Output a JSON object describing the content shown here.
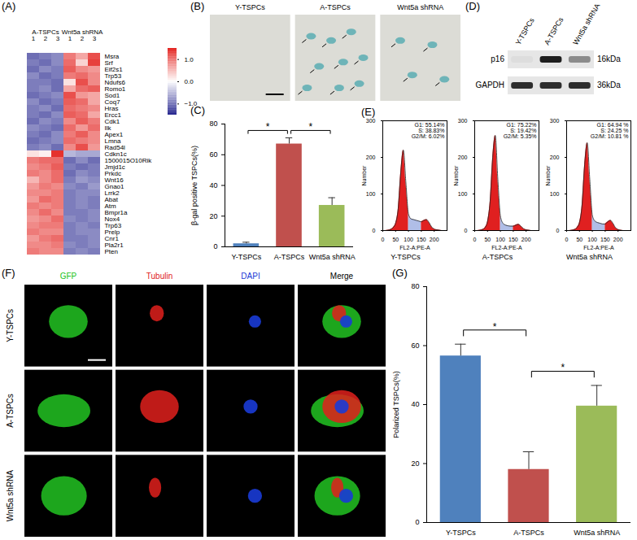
{
  "chart_data": [
    {
      "type": "heatmap",
      "panel": "(A)",
      "groups": [
        "A-TSPCs",
        "Wnt5a shRNA"
      ],
      "columns": [
        "1",
        "2",
        "3",
        "1",
        "2",
        "3"
      ],
      "rows": [
        "Msra",
        "Srf",
        "Eif2s1",
        "Trp53",
        "Ndufs6",
        "Romo1",
        "Sod1",
        "Coq7",
        "Hras",
        "Ercc1",
        "Cdk1",
        "Ilk",
        "Apex1",
        "Lmna",
        "Rad54l",
        "Cdkn1c",
        "1500015O10Rik",
        "Jmjd1c",
        "Prkdc",
        "Wnt16",
        "Gnao1",
        "Lrrk2",
        "Abat",
        "Atm",
        "Bmpr1a",
        "Nox4",
        "Trp63",
        "Prelp",
        "Cnr1",
        "Pla2r1",
        "Pten"
      ],
      "values": [
        [
          -1.0,
          -0.9,
          -0.8,
          0.9,
          0.6,
          1.2
        ],
        [
          -0.9,
          -1.0,
          -0.8,
          1.0,
          0.3,
          1.3
        ],
        [
          -1.0,
          -0.8,
          -0.9,
          1.1,
          0.8,
          0.7
        ],
        [
          -0.8,
          -1.0,
          -0.9,
          0.9,
          1.0,
          0.8
        ],
        [
          -0.9,
          -0.9,
          -1.0,
          0.2,
          1.2,
          0.8
        ],
        [
          -0.9,
          -0.8,
          -1.0,
          0.6,
          1.0,
          1.1
        ],
        [
          -1.0,
          -0.9,
          -0.8,
          1.2,
          0.7,
          0.6
        ],
        [
          -0.8,
          -1.0,
          -0.9,
          1.1,
          1.0,
          0.6
        ],
        [
          -0.9,
          -0.8,
          -1.0,
          1.0,
          0.9,
          0.8
        ],
        [
          -0.9,
          -1.0,
          -0.8,
          1.1,
          1.0,
          0.6
        ],
        [
          -1.0,
          -0.8,
          -0.9,
          0.8,
          1.1,
          0.9
        ],
        [
          -0.8,
          -0.9,
          -1.0,
          1.0,
          0.7,
          1.0
        ],
        [
          -0.9,
          -1.0,
          -0.8,
          0.9,
          1.1,
          0.8
        ],
        [
          -1.0,
          -0.9,
          -0.8,
          1.0,
          0.9,
          0.8
        ],
        [
          -0.9,
          -0.8,
          -1.0,
          0.8,
          1.2,
          0.7
        ],
        [
          0.2,
          0.1,
          1.4,
          -0.5,
          -0.6,
          -0.6
        ],
        [
          0.9,
          1.0,
          1.0,
          -1.0,
          -0.8,
          -1.0
        ],
        [
          0.8,
          0.9,
          1.1,
          -0.9,
          -1.0,
          -0.9
        ],
        [
          0.9,
          0.8,
          1.0,
          -1.0,
          -0.8,
          -0.9
        ],
        [
          0.5,
          0.8,
          1.0,
          -0.9,
          -0.7,
          -0.8
        ],
        [
          0.7,
          0.9,
          0.8,
          -0.8,
          -0.9,
          -0.7
        ],
        [
          0.8,
          0.8,
          0.9,
          -0.9,
          -0.8,
          -0.8
        ],
        [
          0.7,
          1.0,
          0.9,
          -0.9,
          -0.8,
          -0.9
        ],
        [
          0.9,
          0.8,
          0.9,
          -0.9,
          -0.8,
          -0.9
        ],
        [
          0.8,
          1.0,
          0.8,
          -0.9,
          -0.9,
          -0.8
        ],
        [
          0.7,
          0.8,
          1.0,
          -0.8,
          -0.9,
          -0.8
        ],
        [
          0.8,
          0.9,
          0.9,
          -0.9,
          -0.8,
          -0.9
        ],
        [
          0.9,
          0.8,
          0.8,
          -0.9,
          -0.8,
          -0.8
        ],
        [
          0.7,
          0.9,
          1.0,
          -0.9,
          -0.9,
          -0.8
        ],
        [
          0.8,
          0.8,
          0.9,
          -0.8,
          -0.9,
          -0.8
        ],
        [
          0.9,
          0.8,
          0.8,
          -0.9,
          -0.8,
          -0.9
        ]
      ],
      "colorbar": {
        "range": [
          -1.5,
          1.5
        ],
        "ticks": [
          -1,
          0,
          1
        ],
        "colors": [
          "#26268f",
          "#ffffff",
          "#e3231f"
        ]
      }
    },
    {
      "type": "image_row",
      "panel": "(B)",
      "images": [
        "Y-TSPCs",
        "A-TSPCs",
        "Wnt5a shRNA"
      ]
    },
    {
      "type": "bar",
      "panel": "(C)",
      "categories": [
        "Y-TSPCs",
        "A-TSPCs",
        "Wnt5a shRNA"
      ],
      "values": [
        2,
        67,
        27
      ],
      "errors": [
        1,
        4,
        5
      ],
      "colors": [
        "#4f81bd",
        "#c0504d",
        "#9bbb59"
      ],
      "ylabel": "β-gal positive TSPCs(%)",
      "ylim": [
        0,
        80
      ],
      "yticks": [
        0,
        20,
        40,
        60,
        80
      ],
      "significance": [
        {
          "from": 0,
          "to": 1,
          "label": "*"
        },
        {
          "from": 1,
          "to": 2,
          "label": "*"
        }
      ]
    },
    {
      "type": "western_blot",
      "panel": "(D)",
      "lanes": [
        "Y-TSPCs",
        "A-TSPCs",
        "Wnt5a shRNA"
      ],
      "bands": [
        {
          "name": "p16",
          "size": "16kDa",
          "intensity": [
            0.25,
            1.0,
            0.6
          ]
        },
        {
          "name": "GAPDH",
          "size": "36kDa",
          "intensity": [
            0.95,
            0.95,
            0.95
          ]
        }
      ]
    },
    {
      "type": "flow_cytometry",
      "panel": "(E)",
      "xlabel": "FL2-A:PE-A",
      "ylabel": "Number",
      "xlim": [
        0,
        250
      ],
      "xticks": [
        0,
        50,
        100,
        150,
        200
      ],
      "ylim": [
        0,
        300
      ],
      "yticks": [
        0,
        100,
        200,
        300
      ],
      "gates": [
        100,
        150
      ],
      "colors": [
        "#e02020",
        "#8fa3dd",
        "#e02020"
      ],
      "x": [
        0,
        10,
        20,
        30,
        40,
        50,
        60,
        70,
        80,
        90,
        100,
        110,
        120,
        130,
        140,
        150,
        160,
        170,
        180,
        190,
        200,
        210,
        220,
        230,
        240,
        250
      ],
      "series": [
        {
          "name": "Y-TSPCs",
          "phases": [
            "G1: 55.14%",
            "S: 38.83%",
            "G2/M: 6.02%"
          ],
          "values": [
            0,
            0,
            1,
            3,
            8,
            20,
            60,
            160,
            220,
            130,
            45,
            32,
            30,
            28,
            26,
            24,
            28,
            30,
            22,
            10,
            4,
            2,
            1,
            0,
            0,
            0
          ]
        },
        {
          "name": "A-TSPCs",
          "phases": [
            "G1: 75.22%",
            "S: 19.42%",
            "G2/M: 5.35%"
          ],
          "values": [
            0,
            0,
            1,
            3,
            8,
            25,
            80,
            200,
            260,
            140,
            40,
            20,
            15,
            13,
            12,
            12,
            15,
            17,
            12,
            5,
            2,
            1,
            0,
            0,
            0,
            0
          ]
        },
        {
          "name": "Wnt5a shRNA",
          "phases": [
            "G1: 64.94 %",
            "S: 24.25 %",
            "G2/M: 10.81 %"
          ],
          "values": [
            0,
            0,
            1,
            3,
            8,
            22,
            70,
            180,
            240,
            140,
            42,
            26,
            22,
            20,
            18,
            18,
            24,
            28,
            20,
            8,
            3,
            1,
            0,
            0,
            0,
            0
          ]
        }
      ]
    },
    {
      "type": "image_grid",
      "panel": "(F)",
      "columns": [
        {
          "name": "GFP",
          "color": "#22c322"
        },
        {
          "name": "Tubulin",
          "color": "#e0201c"
        },
        {
          "name": "DAPI",
          "color": "#1a3bd6"
        },
        {
          "name": "Merge",
          "color": "#000000"
        }
      ],
      "rows": [
        "Y-TSPCs",
        "A-TSPCs",
        "Wnt5a shRNA"
      ]
    },
    {
      "type": "bar",
      "panel": "(G)",
      "categories": [
        "Y-TSPCs",
        "A-TSPCs",
        "Wnt5a shRNA"
      ],
      "values": [
        56.5,
        18,
        39.5
      ],
      "errors": [
        4,
        6,
        7
      ],
      "colors": [
        "#4f81bd",
        "#c0504d",
        "#9bbb59"
      ],
      "ylabel": "Polarized TSPCs(%)",
      "ylim": [
        0,
        80
      ],
      "yticks": [
        0,
        20,
        40,
        60,
        80
      ],
      "significance": [
        {
          "from": 0,
          "to": 1,
          "label": "*"
        },
        {
          "from": 1,
          "to": 2,
          "label": "*"
        }
      ]
    }
  ]
}
